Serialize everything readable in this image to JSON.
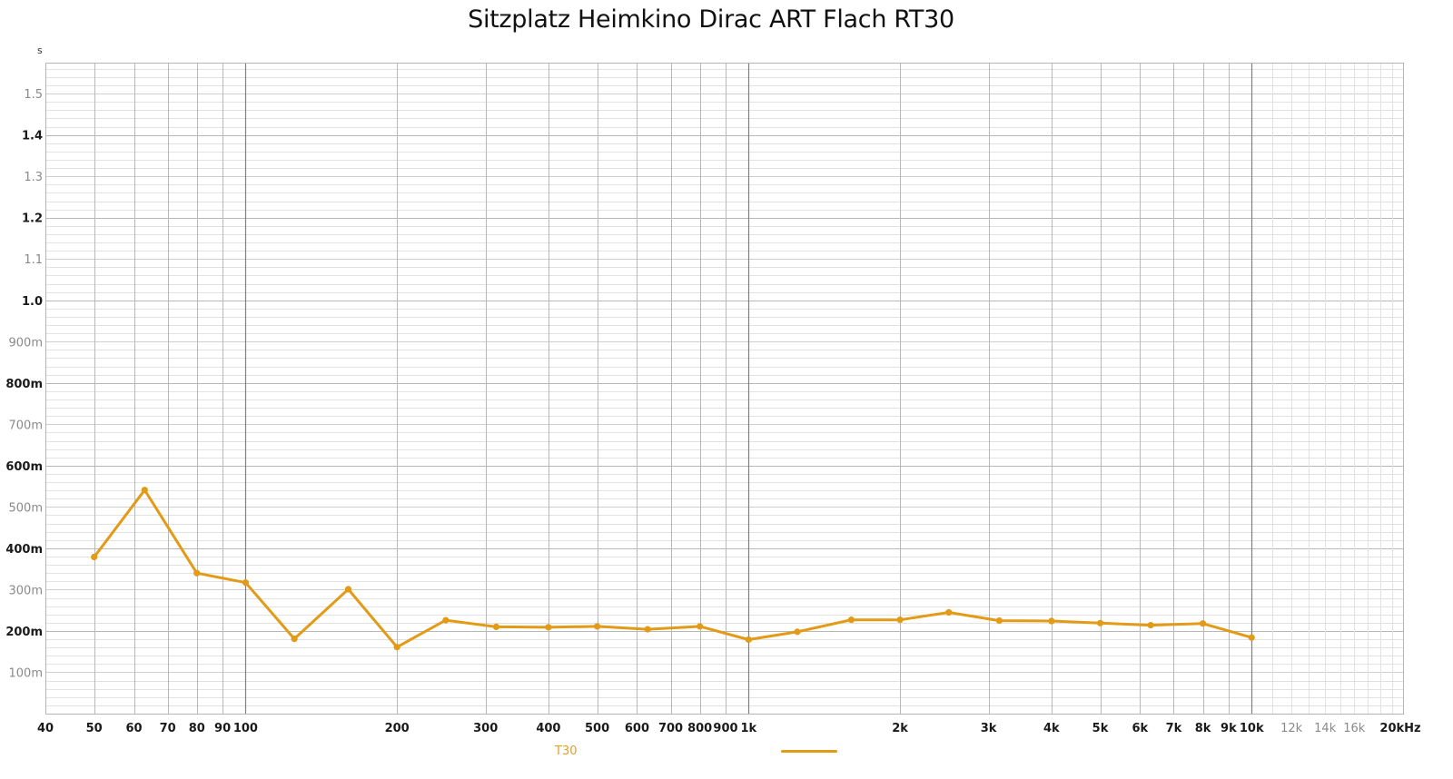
{
  "chart_data": {
    "type": "line",
    "title": "Sitzplatz Heimkino Dirac ART Flach RT30",
    "xlabel": "Hz",
    "ylabel": "s",
    "xscale": "log",
    "xlim": [
      40,
      20000
    ],
    "ylim": [
      0,
      1.575
    ],
    "grid": true,
    "legend_position": "bottom",
    "x_tick_labels": [
      {
        "value": 40,
        "label": "40",
        "style": "major"
      },
      {
        "value": 50,
        "label": "50",
        "style": "major"
      },
      {
        "value": 60,
        "label": "60",
        "style": "major"
      },
      {
        "value": 70,
        "label": "70",
        "style": "major"
      },
      {
        "value": 80,
        "label": "80",
        "style": "major"
      },
      {
        "value": 90,
        "label": "90",
        "style": "major"
      },
      {
        "value": 100,
        "label": "100",
        "style": "major"
      },
      {
        "value": 200,
        "label": "200",
        "style": "major"
      },
      {
        "value": 300,
        "label": "300",
        "style": "major"
      },
      {
        "value": 400,
        "label": "400",
        "style": "major"
      },
      {
        "value": 500,
        "label": "500",
        "style": "major"
      },
      {
        "value": 600,
        "label": "600",
        "style": "major"
      },
      {
        "value": 700,
        "label": "700",
        "style": "major"
      },
      {
        "value": 800,
        "label": "800",
        "style": "major"
      },
      {
        "value": 900,
        "label": "900",
        "style": "major"
      },
      {
        "value": 1000,
        "label": "1k",
        "style": "major"
      },
      {
        "value": 2000,
        "label": "2k",
        "style": "major"
      },
      {
        "value": 3000,
        "label": "3k",
        "style": "major"
      },
      {
        "value": 4000,
        "label": "4k",
        "style": "major"
      },
      {
        "value": 5000,
        "label": "5k",
        "style": "major"
      },
      {
        "value": 6000,
        "label": "6k",
        "style": "major"
      },
      {
        "value": 7000,
        "label": "7k",
        "style": "major"
      },
      {
        "value": 8000,
        "label": "8k",
        "style": "major"
      },
      {
        "value": 9000,
        "label": "9k",
        "style": "major"
      },
      {
        "value": 10000,
        "label": "10k",
        "style": "major"
      },
      {
        "value": 12000,
        "label": "12k",
        "style": "minor"
      },
      {
        "value": 14000,
        "label": "14k",
        "style": "minor"
      },
      {
        "value": 16000,
        "label": "16k",
        "style": "minor"
      },
      {
        "value": 20000,
        "label": "20kHz",
        "style": "major"
      }
    ],
    "y_tick_labels": [
      {
        "value": 1.5,
        "label": "1.5",
        "style": "minor"
      },
      {
        "value": 1.4,
        "label": "1.4",
        "style": "major"
      },
      {
        "value": 1.3,
        "label": "1.3",
        "style": "minor"
      },
      {
        "value": 1.2,
        "label": "1.2",
        "style": "major"
      },
      {
        "value": 1.1,
        "label": "1.1",
        "style": "minor"
      },
      {
        "value": 1.0,
        "label": "1.0",
        "style": "major"
      },
      {
        "value": 0.9,
        "label": "900m",
        "style": "minor"
      },
      {
        "value": 0.8,
        "label": "800m",
        "style": "major"
      },
      {
        "value": 0.7,
        "label": "700m",
        "style": "minor"
      },
      {
        "value": 0.6,
        "label": "600m",
        "style": "major"
      },
      {
        "value": 0.5,
        "label": "500m",
        "style": "minor"
      },
      {
        "value": 0.4,
        "label": "400m",
        "style": "major"
      },
      {
        "value": 0.3,
        "label": "300m",
        "style": "minor"
      },
      {
        "value": 0.2,
        "label": "200m",
        "style": "major"
      },
      {
        "value": 0.1,
        "label": "100m",
        "style": "minor"
      }
    ],
    "x": [
      50,
      63,
      80,
      100,
      125,
      160,
      200,
      250,
      315,
      400,
      500,
      630,
      800,
      1000,
      1250,
      1600,
      2000,
      2500,
      3150,
      4000,
      5000,
      6300,
      8000,
      10000
    ],
    "series": [
      {
        "name": "T30",
        "color": "#e39a16",
        "values": [
          0.379,
          0.541,
          0.34,
          0.317,
          0.181,
          0.301,
          0.161,
          0.226,
          0.21,
          0.209,
          0.211,
          0.204,
          0.211,
          0.179,
          0.198,
          0.227,
          0.227,
          0.245,
          0.225,
          0.224,
          0.219,
          0.214,
          0.218,
          0.184
        ]
      }
    ]
  },
  "legend": {
    "label": "T30",
    "color": "#e39a16"
  },
  "colors": {
    "series": "#e39a16",
    "grid_minor": "#e2e2e2",
    "grid_mid": "#cfcfcf",
    "grid_major": "#b8b8b8",
    "grid_decade": "#808080",
    "label_major": "#1a1a1a",
    "label_minor": "#8a8a8a"
  }
}
